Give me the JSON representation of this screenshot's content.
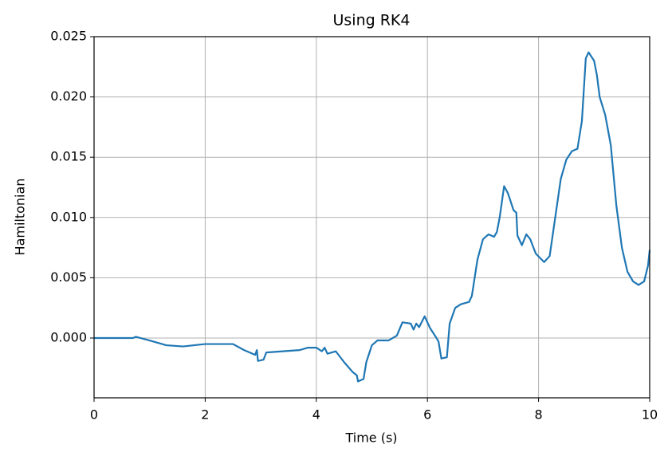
{
  "chart_data": {
    "type": "line",
    "title": "Using RK4",
    "x_label": "Time (s)",
    "y_label": "Hamiltonian",
    "x": [
      0,
      0.3,
      0.7,
      0.75,
      1.0,
      1.3,
      1.6,
      1.8,
      2.0,
      2.3,
      2.5,
      2.7,
      2.9,
      2.93,
      2.95,
      3.05,
      3.1,
      3.4,
      3.7,
      3.85,
      4.0,
      4.1,
      4.15,
      4.2,
      4.35,
      4.5,
      4.65,
      4.73,
      4.75,
      4.85,
      4.9,
      5.0,
      5.1,
      5.3,
      5.45,
      5.55,
      5.7,
      5.75,
      5.8,
      5.85,
      5.95,
      6.05,
      6.15,
      6.2,
      6.25,
      6.35,
      6.4,
      6.5,
      6.6,
      6.75,
      6.8,
      6.9,
      7.0,
      7.1,
      7.2,
      7.25,
      7.3,
      7.38,
      7.45,
      7.55,
      7.6,
      7.62,
      7.7,
      7.78,
      7.85,
      7.95,
      8.1,
      8.2,
      8.3,
      8.4,
      8.5,
      8.6,
      8.7,
      8.78,
      8.85,
      8.9,
      9.0,
      9.05,
      9.1,
      9.2,
      9.3,
      9.4,
      9.5,
      9.6,
      9.7,
      9.8,
      9.9,
      9.97,
      10.0
    ],
    "series": [
      {
        "name": "Hamiltonian",
        "color": "#1f77b4",
        "values": [
          0,
          0,
          0,
          0.0001,
          -0.0002,
          -0.0006,
          -0.0007,
          -0.0006,
          -0.0005,
          -0.0005,
          -0.0005,
          -0.001,
          -0.0014,
          -0.001,
          -0.0019,
          -0.0018,
          -0.0012,
          -0.0011,
          -0.001,
          -0.0008,
          -0.0008,
          -0.0011,
          -0.0008,
          -0.0013,
          -0.0011,
          -0.002,
          -0.0028,
          -0.0031,
          -0.0036,
          -0.0034,
          -0.002,
          -0.0006,
          -0.0002,
          -0.0002,
          0.0002,
          0.0013,
          0.0012,
          0.0007,
          0.0012,
          0.0009,
          0.0018,
          0.0008,
          0.0001,
          -0.0003,
          -0.0017,
          -0.0016,
          0.0012,
          0.0025,
          0.0028,
          0.003,
          0.0035,
          0.0065,
          0.0082,
          0.0086,
          0.0084,
          0.0088,
          0.01,
          0.0126,
          0.012,
          0.0106,
          0.0104,
          0.0085,
          0.0077,
          0.0086,
          0.0082,
          0.007,
          0.0063,
          0.0068,
          0.01,
          0.0132,
          0.0148,
          0.0155,
          0.0157,
          0.018,
          0.0232,
          0.0237,
          0.023,
          0.0218,
          0.02,
          0.0185,
          0.016,
          0.011,
          0.0075,
          0.0055,
          0.0047,
          0.0044,
          0.0047,
          0.006,
          0.0073
        ]
      }
    ],
    "xlim": [
      0,
      10
    ],
    "xticks": [
      0,
      2,
      4,
      6,
      8,
      10
    ],
    "ylim": [
      -0.00496,
      0.025
    ],
    "yticks": [
      {
        "value": 0,
        "label": "0.000"
      },
      {
        "value": 0.005,
        "label": "0.005"
      },
      {
        "value": 0.01,
        "label": "0.010"
      },
      {
        "value": 0.015,
        "label": "0.015"
      },
      {
        "value": 0.02,
        "label": "0.020"
      },
      {
        "value": 0.025,
        "label": "0.025"
      }
    ],
    "grid": true
  }
}
